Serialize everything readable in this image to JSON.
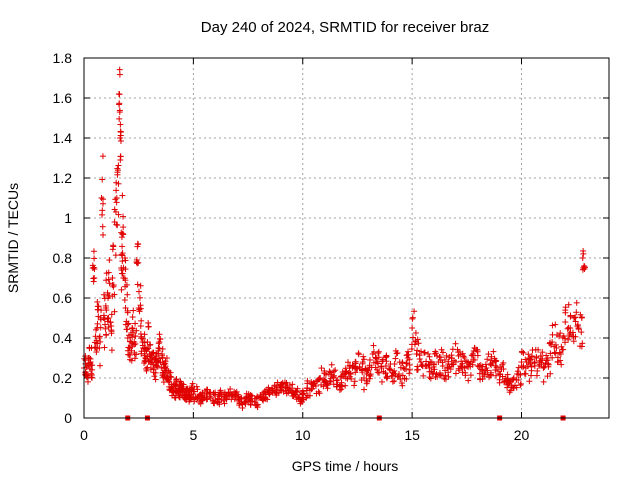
{
  "chart_data": {
    "type": "scatter",
    "title": "Day 240 of 2024, SRMTID for receiver braz",
    "xlabel": "GPS time / hours",
    "ylabel": "SRMTID / TECUs",
    "xlim": [
      0,
      24
    ],
    "ylim": [
      0,
      1.8
    ],
    "xticks": [
      0,
      5,
      10,
      15,
      20
    ],
    "xtick_labels": [
      "0",
      "5",
      "10",
      "15",
      "20"
    ],
    "yticks": [
      0,
      0.2,
      0.4,
      0.6,
      0.8,
      1,
      1.2,
      1.4,
      1.6,
      1.8
    ],
    "ytick_labels": [
      "0",
      "0.2",
      "0.4",
      "0.6",
      "0.8",
      "1",
      "1.2",
      "1.4",
      "1.6",
      "1.8"
    ],
    "grid": true,
    "marker": "+",
    "color": "#e00000",
    "series": [
      {
        "name": "SRMTID",
        "x": [
          0.0,
          0.1,
          0.2,
          0.3,
          0.4,
          0.5,
          0.6,
          0.7,
          0.8,
          0.9,
          1.0,
          1.1,
          1.2,
          1.3,
          1.4,
          1.5,
          1.6,
          1.65,
          1.7,
          1.75,
          1.8,
          1.9,
          2.0,
          2.1,
          2.2,
          2.3,
          2.4,
          2.5,
          2.6,
          2.7,
          2.8,
          2.9,
          3.0,
          3.1,
          3.2,
          3.3,
          3.4,
          3.5,
          3.6,
          3.7,
          3.8,
          3.9,
          4.0,
          4.1,
          4.2,
          4.3,
          4.4,
          4.5,
          4.6,
          4.7,
          4.8,
          4.9,
          5.0,
          5.2,
          5.4,
          5.6,
          5.8,
          6.0,
          6.2,
          6.4,
          6.6,
          6.8,
          7.0,
          7.2,
          7.4,
          7.6,
          7.8,
          8.0,
          8.2,
          8.4,
          8.6,
          8.8,
          9.0,
          9.2,
          9.4,
          9.6,
          9.8,
          10.0,
          10.2,
          10.4,
          10.6,
          10.8,
          11.0,
          11.2,
          11.4,
          11.6,
          11.8,
          12.0,
          12.2,
          12.4,
          12.6,
          12.8,
          13.0,
          13.2,
          13.4,
          13.6,
          13.8,
          14.0,
          14.2,
          14.4,
          14.6,
          14.8,
          15.0,
          15.2,
          15.4,
          15.6,
          15.8,
          16.0,
          16.2,
          16.4,
          16.6,
          16.8,
          17.0,
          17.2,
          17.4,
          17.6,
          17.8,
          18.0,
          18.2,
          18.4,
          18.6,
          18.8,
          19.0,
          19.2,
          19.4,
          19.6,
          19.8,
          20.0,
          20.2,
          20.4,
          20.6,
          20.8,
          21.0,
          21.2,
          21.4,
          21.6,
          21.8,
          22.0,
          22.2,
          22.4,
          22.6,
          22.8
        ],
        "y": [
          0.25,
          0.22,
          0.3,
          0.28,
          0.75,
          0.35,
          0.45,
          0.4,
          1.1,
          0.5,
          0.55,
          0.6,
          0.48,
          0.7,
          0.98,
          1.1,
          1.62,
          1.4,
          0.75,
          0.92,
          0.7,
          0.55,
          0.4,
          0.35,
          0.45,
          0.38,
          0.78,
          0.55,
          0.42,
          0.35,
          0.3,
          0.38,
          0.32,
          0.28,
          0.25,
          0.3,
          0.35,
          0.28,
          0.22,
          0.25,
          0.2,
          0.18,
          0.15,
          0.14,
          0.16,
          0.13,
          0.15,
          0.14,
          0.12,
          0.13,
          0.11,
          0.14,
          0.12,
          0.1,
          0.11,
          0.12,
          0.1,
          0.09,
          0.11,
          0.1,
          0.12,
          0.11,
          0.09,
          0.08,
          0.1,
          0.09,
          0.08,
          0.1,
          0.12,
          0.13,
          0.14,
          0.15,
          0.16,
          0.15,
          0.14,
          0.12,
          0.1,
          0.12,
          0.15,
          0.17,
          0.16,
          0.2,
          0.18,
          0.22,
          0.2,
          0.19,
          0.21,
          0.23,
          0.22,
          0.28,
          0.25,
          0.2,
          0.24,
          0.32,
          0.28,
          0.25,
          0.26,
          0.24,
          0.27,
          0.22,
          0.25,
          0.3,
          0.45,
          0.32,
          0.28,
          0.26,
          0.25,
          0.27,
          0.28,
          0.26,
          0.25,
          0.3,
          0.28,
          0.26,
          0.25,
          0.27,
          0.29,
          0.26,
          0.24,
          0.25,
          0.27,
          0.24,
          0.22,
          0.18,
          0.17,
          0.19,
          0.22,
          0.28,
          0.25,
          0.27,
          0.28,
          0.26,
          0.25,
          0.3,
          0.38,
          0.35,
          0.32,
          0.48,
          0.42,
          0.5,
          0.45,
          0.8
        ],
        "spread": [
          0.06,
          0.06,
          0.07,
          0.08,
          0.12,
          0.1,
          0.15,
          0.14,
          0.25,
          0.15,
          0.18,
          0.2,
          0.15,
          0.18,
          0.2,
          0.18,
          0.15,
          0.12,
          0.18,
          0.2,
          0.15,
          0.12,
          0.1,
          0.08,
          0.1,
          0.1,
          0.12,
          0.12,
          0.1,
          0.08,
          0.07,
          0.1,
          0.08,
          0.07,
          0.06,
          0.08,
          0.07,
          0.07,
          0.06,
          0.06,
          0.05,
          0.05,
          0.04,
          0.04,
          0.05,
          0.04,
          0.04,
          0.04,
          0.03,
          0.03,
          0.03,
          0.04,
          0.04,
          0.03,
          0.03,
          0.03,
          0.03,
          0.03,
          0.03,
          0.03,
          0.03,
          0.03,
          0.03,
          0.03,
          0.03,
          0.03,
          0.03,
          0.03,
          0.03,
          0.03,
          0.03,
          0.03,
          0.03,
          0.03,
          0.03,
          0.03,
          0.03,
          0.03,
          0.04,
          0.04,
          0.04,
          0.05,
          0.04,
          0.05,
          0.05,
          0.05,
          0.05,
          0.06,
          0.06,
          0.07,
          0.07,
          0.06,
          0.06,
          0.08,
          0.07,
          0.07,
          0.07,
          0.06,
          0.07,
          0.06,
          0.07,
          0.08,
          0.09,
          0.08,
          0.07,
          0.07,
          0.07,
          0.07,
          0.07,
          0.07,
          0.07,
          0.08,
          0.07,
          0.07,
          0.07,
          0.07,
          0.08,
          0.07,
          0.06,
          0.07,
          0.07,
          0.06,
          0.06,
          0.05,
          0.05,
          0.05,
          0.06,
          0.07,
          0.07,
          0.07,
          0.07,
          0.07,
          0.07,
          0.08,
          0.09,
          0.09,
          0.09,
          0.1,
          0.1,
          0.1,
          0.1,
          0.06
        ]
      }
    ],
    "gap_markers_x": [
      2.0,
      2.9,
      13.5,
      19.0,
      21.9
    ]
  }
}
